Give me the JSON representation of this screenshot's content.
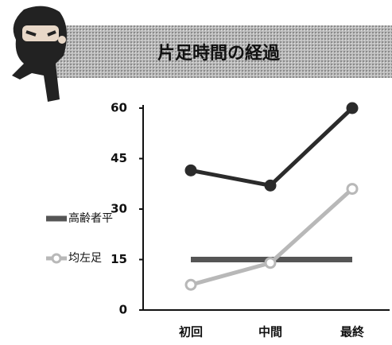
{
  "chart_data": {
    "type": "line",
    "title": "片足時間の経過",
    "categories": [
      "初回",
      "中間",
      "最終"
    ],
    "series": [
      {
        "color": "#2b2b2b",
        "values": [
          41.5,
          37,
          60
        ]
      },
      {
        "name": "高齢者平",
        "color": "#555555",
        "values": [
          15,
          15,
          15
        ]
      },
      {
        "name": "均左足",
        "color": "#b8b8b8",
        "values": [
          7.5,
          14,
          36
        ]
      }
    ],
    "ylim": [
      0,
      60
    ],
    "yticks": [
      0,
      15,
      30,
      45,
      60
    ],
    "grid": false
  }
}
